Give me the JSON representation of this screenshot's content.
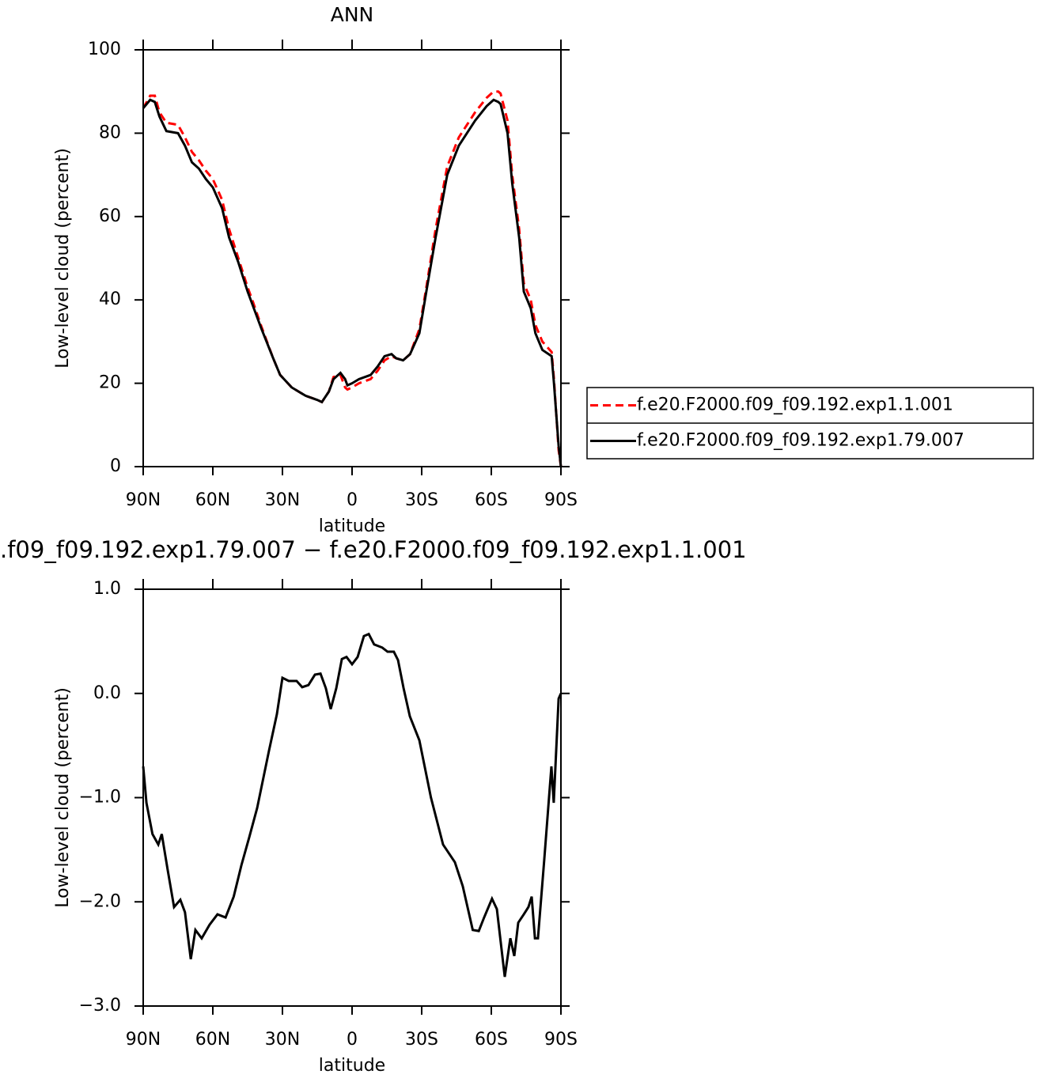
{
  "chart_data": [
    {
      "type": "line",
      "title": "ANN",
      "x_label": "latitude",
      "y_label": "Low-level cloud (percent)",
      "x": [
        90,
        87,
        85,
        83,
        80,
        75,
        72,
        69,
        66,
        63,
        60,
        56,
        53,
        49,
        45,
        43,
        39,
        34,
        31,
        26,
        20,
        15,
        13,
        10,
        8,
        5,
        3,
        2,
        0,
        -3,
        -8,
        -11,
        -14,
        -17,
        -19,
        -22,
        -25,
        -29,
        -32,
        -36,
        -41,
        -46,
        -53,
        -58,
        -61,
        -63,
        -64,
        -67,
        -69,
        -72,
        -74,
        -77,
        -79,
        -82,
        -86,
        -87,
        -89,
        -90
      ],
      "series": [
        {
          "name": "f.e20.F2000.f09_f09.192.exp1.1.001",
          "color": "#ff0000",
          "dash": "dashed",
          "values": [
            86,
            89,
            89,
            85,
            82.5,
            82,
            79,
            75.5,
            73.5,
            71,
            69,
            64,
            57,
            50,
            43,
            40,
            33.5,
            26,
            22,
            19,
            17,
            16,
            15.5,
            18,
            21.5,
            22,
            19,
            18.5,
            19,
            20,
            21,
            23,
            25.5,
            26.5,
            26,
            25.5,
            27,
            33,
            43,
            57,
            72,
            79,
            85,
            88.5,
            90,
            90,
            89.5,
            83,
            70,
            57,
            44,
            40,
            34,
            30,
            27.5,
            21,
            4,
            0
          ]
        },
        {
          "name": "f.e20.F2000.f09_f09.192.exp1.79.007",
          "color": "#000000",
          "dash": "solid",
          "values": [
            86,
            88,
            87.5,
            84,
            80.5,
            80,
            77,
            73,
            71.5,
            69,
            67,
            62,
            55,
            49,
            42,
            39,
            33,
            26,
            22,
            19,
            17,
            16,
            15.5,
            18,
            21,
            22.5,
            21,
            19.5,
            20,
            21,
            22,
            24,
            26.5,
            27,
            26,
            25.5,
            27,
            32,
            42,
            55,
            70,
            77,
            83,
            86.5,
            88,
            87.5,
            87,
            80,
            68,
            55,
            42,
            38,
            32,
            28,
            26.5,
            20,
            5,
            0
          ]
        }
      ],
      "xlim": [
        90,
        -90
      ],
      "xticks": [
        {
          "value": 90,
          "label": "90N"
        },
        {
          "value": 60,
          "label": "60N"
        },
        {
          "value": 30,
          "label": "30N"
        },
        0,
        {
          "value": -30,
          "label": "30S"
        },
        {
          "value": -60,
          "label": "60S"
        },
        {
          "value": -90,
          "label": "90S"
        }
      ],
      "ylim": [
        0,
        100
      ],
      "yticks": [
        0,
        20,
        40,
        60,
        80,
        100
      ],
      "legend": "right"
    },
    {
      "type": "line",
      "title": ".f09_f09.192.exp1.79.007 − f.e20.F2000.f09_f09.192.exp1.1.001",
      "x_label": "latitude",
      "y_label": "Low-level cloud (percent)",
      "x": [
        90,
        88.6,
        86,
        83.5,
        82,
        79.4,
        76.7,
        74,
        72,
        69.5,
        67.5,
        64.8,
        61.4,
        58,
        54.5,
        51,
        47.7,
        44.3,
        40.9,
        35.8,
        32.4,
        30,
        27.3,
        23.9,
        21.5,
        18.8,
        16,
        13.6,
        11.3,
        9.2,
        6.8,
        4.4,
        2.4,
        0,
        -2.4,
        -5.1,
        -7.2,
        -9.5,
        -13,
        -15.3,
        -18,
        -19.8,
        -22.2,
        -24.9,
        -29,
        -34,
        -39.2,
        -44.3,
        -47.7,
        -52,
        -54.6,
        -56.9,
        -60.3,
        -62.4,
        -65.8,
        -68.2,
        -69.9,
        -71.6,
        -74,
        -76,
        -77.4,
        -78.8,
        -80.1,
        -82.8,
        -85.9,
        -86.9,
        -89,
        -90
      ],
      "series": [
        {
          "color": "#000000",
          "dash": "solid",
          "values": [
            -0.7,
            -1.05,
            -1.35,
            -1.45,
            -1.35,
            -1.7,
            -2.05,
            -1.98,
            -2.1,
            -2.55,
            -2.27,
            -2.35,
            -2.22,
            -2.12,
            -2.15,
            -1.95,
            -1.65,
            -1.38,
            -1.1,
            -0.55,
            -0.2,
            0.15,
            0.12,
            0.12,
            0.06,
            0.08,
            0.18,
            0.19,
            0.05,
            -0.15,
            0.05,
            0.33,
            0.35,
            0.28,
            0.35,
            0.55,
            0.57,
            0.47,
            0.44,
            0.4,
            0.4,
            0.32,
            0.05,
            -0.22,
            -0.45,
            -1.0,
            -1.45,
            -1.62,
            -1.85,
            -2.27,
            -2.28,
            -2.15,
            -1.97,
            -2.07,
            -2.72,
            -2.35,
            -2.52,
            -2.2,
            -2.12,
            -2.05,
            -1.95,
            -2.35,
            -2.35,
            -1.6,
            -0.7,
            -1.05,
            -0.05,
            0.0
          ]
        }
      ],
      "xlim": [
        90,
        -90
      ],
      "xticks": [
        {
          "value": 90,
          "label": "90N"
        },
        {
          "value": 60,
          "label": "60N"
        },
        {
          "value": 30,
          "label": "30N"
        },
        0,
        {
          "value": -30,
          "label": "30S"
        },
        {
          "value": -60,
          "label": "60S"
        },
        {
          "value": -90,
          "label": "90S"
        }
      ],
      "ylim": [
        -3,
        1
      ],
      "yticks": [
        {
          "value": -3,
          "label": "−3.0"
        },
        {
          "value": -2,
          "label": "−2.0"
        },
        {
          "value": -1,
          "label": "−1.0"
        },
        {
          "value": 0,
          "label": "0.0"
        },
        {
          "value": 1,
          "label": "1.0"
        }
      ]
    }
  ]
}
